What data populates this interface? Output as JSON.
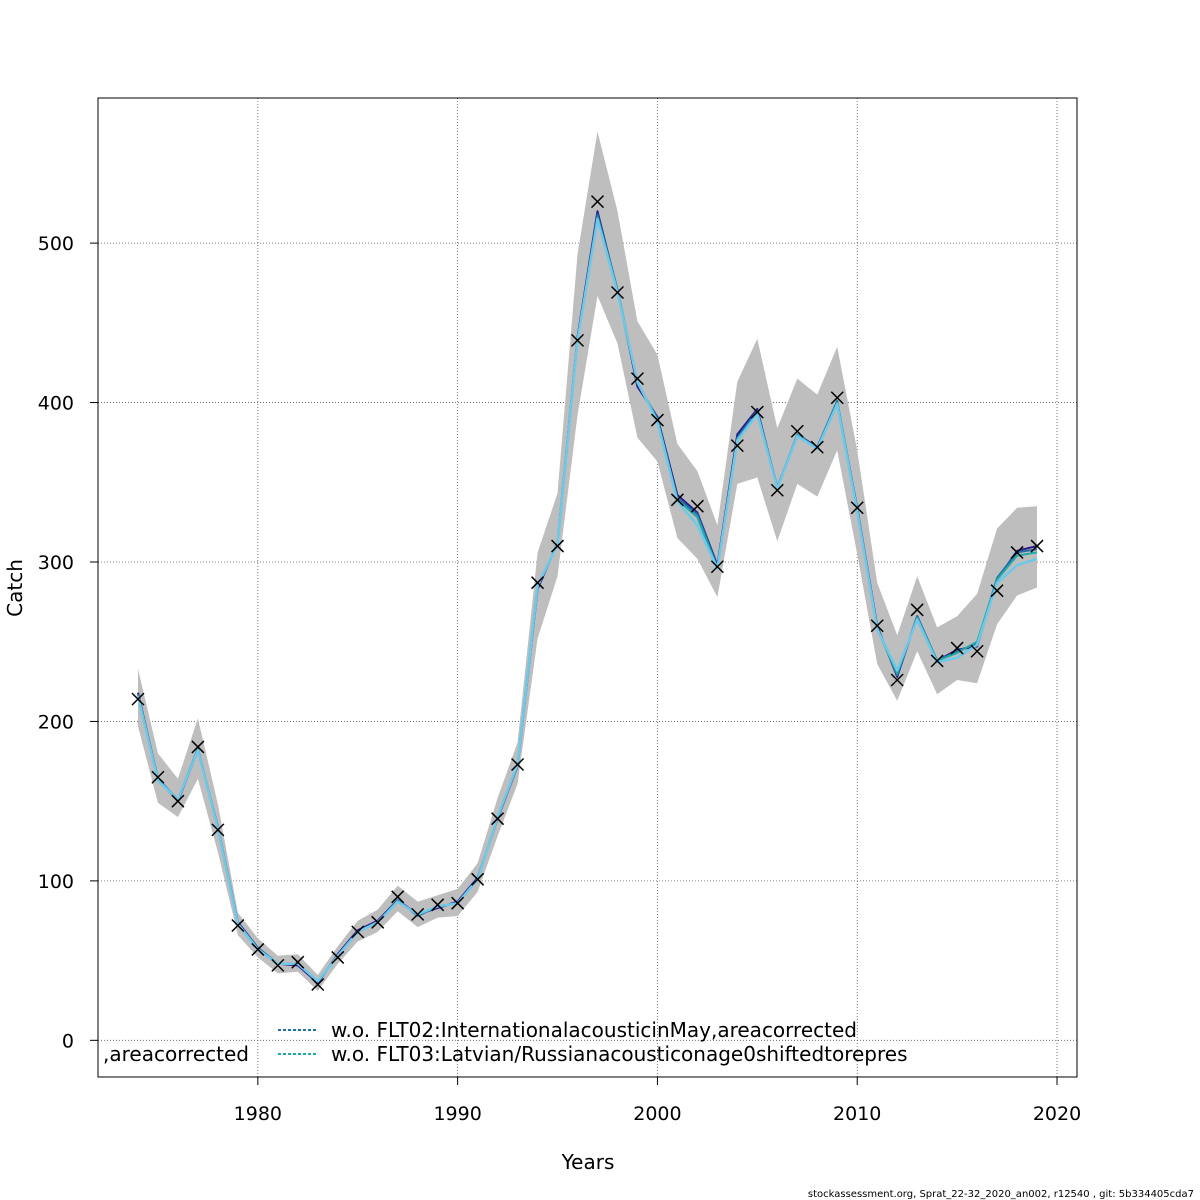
{
  "chart_data": {
    "type": "line",
    "title": "",
    "xlabel": "Years",
    "ylabel": "Catch",
    "xlim": [
      1972,
      2021
    ],
    "ylim": [
      -23,
      591
    ],
    "x_ticks": [
      1980,
      1990,
      2000,
      2010,
      2020
    ],
    "y_ticks": [
      0,
      100,
      200,
      300,
      400,
      500
    ],
    "grid": true,
    "x": [
      1974,
      1975,
      1976,
      1977,
      1978,
      1979,
      1980,
      1981,
      1982,
      1983,
      1984,
      1985,
      1986,
      1987,
      1988,
      1989,
      1990,
      1991,
      1992,
      1993,
      1994,
      1995,
      1996,
      1997,
      1998,
      1999,
      2000,
      2001,
      2002,
      2003,
      2004,
      2005,
      2006,
      2007,
      2008,
      2009,
      2010,
      2011,
      2012,
      2013,
      2014,
      2015,
      2016,
      2017,
      2018,
      2019
    ],
    "observed": {
      "marker": "x",
      "values": [
        214,
        165,
        150,
        184,
        132,
        72,
        57,
        47,
        49,
        35,
        52,
        68,
        74,
        90,
        79,
        85,
        86,
        101,
        139,
        173,
        287,
        310,
        439,
        526,
        469,
        415,
        389,
        339,
        335,
        297,
        373,
        394,
        345,
        382,
        372,
        403,
        334,
        260,
        226,
        270,
        238,
        246,
        244,
        282,
        306,
        310
      ]
    },
    "series": [
      {
        "color": "#2a1a8c",
        "values": [
          218,
          164,
          150,
          182,
          134,
          74,
          58,
          48,
          47,
          36,
          54,
          69,
          75,
          88,
          79,
          83,
          87,
          102,
          139,
          172,
          283,
          312,
          441,
          520,
          470,
          410,
          391,
          342,
          331,
          298,
          380,
          396,
          346,
          380,
          372,
          400,
          334,
          260,
          228,
          266,
          238,
          245,
          247,
          289,
          307,
          310
        ]
      },
      {
        "name": "w.o. FLT02:InternationalacousticinMay,areacorrected",
        "color": "#1f6fa8",
        "values": [
          217,
          164,
          151,
          183,
          133,
          73,
          58,
          48,
          48,
          37,
          53,
          68,
          74,
          88,
          78,
          84,
          86,
          101,
          140,
          173,
          285,
          311,
          440,
          518,
          471,
          412,
          390,
          340,
          330,
          297,
          378,
          395,
          347,
          379,
          372,
          401,
          333,
          259,
          229,
          266,
          238,
          244,
          249,
          290,
          306,
          308
        ]
      },
      {
        "name": "w.o. FLT03:Latvian/Russianacousticonage0shiftedtorepres",
        "color": "#1faaa8",
        "values": [
          216,
          163,
          151,
          182,
          133,
          73,
          57,
          48,
          48,
          37,
          53,
          68,
          74,
          87,
          79,
          84,
          86,
          101,
          140,
          173,
          285,
          311,
          439,
          516,
          470,
          413,
          389,
          339,
          328,
          296,
          377,
          393,
          346,
          380,
          371,
          400,
          333,
          258,
          230,
          265,
          238,
          243,
          250,
          289,
          304,
          306
        ]
      },
      {
        "color": "#6ec8e8",
        "values": [
          216,
          163,
          151,
          182,
          133,
          73,
          57,
          48,
          48,
          37,
          53,
          68,
          74,
          87,
          79,
          84,
          86,
          101,
          140,
          173,
          285,
          311,
          439,
          515,
          469,
          413,
          388,
          338,
          323,
          296,
          376,
          393,
          346,
          379,
          371,
          399,
          332,
          258,
          232,
          264,
          237,
          240,
          248,
          287,
          298,
          302
        ]
      }
    ],
    "confidence_band": {
      "color": "#bebebe",
      "lower": [
        197,
        149,
        140,
        164,
        118,
        66,
        52,
        42,
        43,
        31,
        48,
        62,
        68,
        81,
        71,
        77,
        78,
        93,
        128,
        161,
        252,
        291,
        392,
        467,
        437,
        378,
        363,
        315,
        302,
        278,
        349,
        353,
        313,
        349,
        341,
        370,
        305,
        236,
        213,
        244,
        217,
        226,
        224,
        261,
        279,
        284
      ],
      "upper": [
        233,
        180,
        164,
        202,
        148,
        80,
        64,
        53,
        54,
        41,
        59,
        75,
        82,
        97,
        87,
        91,
        95,
        111,
        152,
        187,
        306,
        343,
        493,
        570,
        520,
        451,
        430,
        374,
        357,
        323,
        413,
        440,
        384,
        415,
        405,
        435,
        370,
        287,
        254,
        291,
        259,
        266,
        280,
        321,
        334,
        335
      ]
    },
    "legend": {
      "placement": "bottom",
      "truncated_left_text": ",areacorrected",
      "entries": [
        {
          "label": "w.o. FLT02:InternationalacousticinMay,areacorrected",
          "color": "#1f6fa8"
        },
        {
          "label": "w.o. FLT03:Latvian/Russianacousticonage0shiftedtorepres",
          "color": "#1faaa8"
        }
      ]
    }
  },
  "footer": "stockassessment.org, Sprat_22-32_2020_an002, r12540 , git: 5b334405cda7"
}
